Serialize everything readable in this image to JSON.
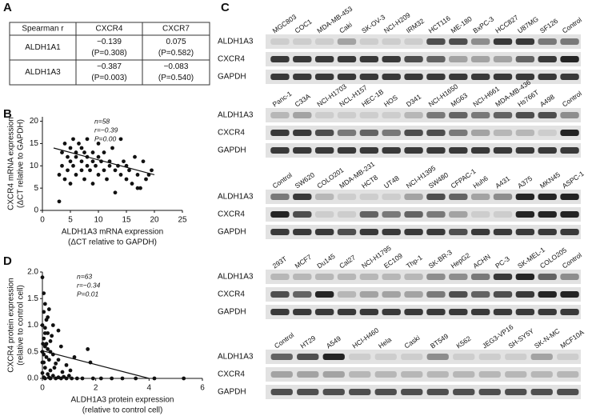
{
  "panel_letters": [
    "A",
    "B",
    "C",
    "D"
  ],
  "table": {
    "header": [
      "Spearman r",
      "CXCR4",
      "CXCR7"
    ],
    "rows": [
      [
        "ALDH1A1",
        [
          "−0.139",
          "(P=0.308)"
        ],
        [
          "0.075",
          "(P=0.582)"
        ]
      ],
      [
        "ALDH1A3",
        [
          "−0.387",
          "(P=0.003)"
        ],
        [
          "−0.083",
          "(P=0.540)"
        ]
      ]
    ]
  },
  "chart_data": [
    {
      "type": "scatter",
      "color": "#111",
      "ylabel": [
        "CXCR4 mRNA expression",
        "(ΔCT relative to GAPDH)"
      ],
      "xlabel": [
        "ALDH1A3 mRNA expression",
        "(ΔCT relative to GAPDH)"
      ],
      "annotations": [
        "n=58",
        "r=−0.39",
        "P=0.00"
      ],
      "xlim": [
        0,
        25
      ],
      "xticks": [
        0,
        5,
        10,
        15,
        20,
        25
      ],
      "ylim": [
        0,
        21
      ],
      "yticks": [
        0,
        5,
        10,
        15,
        20
      ],
      "x": [
        3,
        3,
        3.5,
        3.5,
        4,
        4,
        4.5,
        4.5,
        5,
        5,
        5,
        5.5,
        5.5,
        6,
        6,
        6,
        6.5,
        7,
        7,
        7,
        7.5,
        7.5,
        8,
        8,
        8,
        8.5,
        9,
        9,
        9,
        9.5,
        10,
        10,
        10,
        10.5,
        11,
        11,
        11.5,
        12,
        12,
        12.5,
        13,
        13,
        13.5,
        14,
        14,
        14.5,
        15,
        15,
        15.5,
        16,
        16.5,
        17,
        17,
        17.5,
        18,
        18.5,
        19,
        19.5
      ],
      "values": [
        2,
        8,
        10,
        13,
        7,
        15,
        12,
        9,
        11,
        14,
        6,
        16,
        10,
        13,
        8,
        12,
        15,
        11,
        9,
        14,
        13,
        7,
        10,
        12,
        16,
        9,
        11,
        13,
        6,
        10,
        12,
        8,
        15,
        11,
        9,
        13,
        7,
        10,
        11,
        14,
        9,
        4,
        10,
        16,
        8,
        11,
        7,
        10,
        9,
        6,
        12,
        5,
        8,
        5,
        11,
        7,
        8,
        9
      ],
      "fit": {
        "x": [
          2,
          20
        ],
        "values": [
          14,
          8
        ]
      }
    },
    {
      "type": "scatter",
      "color": "#111",
      "ylabel": [
        "CXCR4 protein expression",
        "(relative to control cell)"
      ],
      "xlabel": [
        "ALDH1A3 protein expression",
        "(relative to control cell)"
      ],
      "annotations": [
        "n=63",
        "r=−0.34",
        "P=0.01"
      ],
      "xlim": [
        0,
        6
      ],
      "xticks": [
        0,
        2,
        4,
        6
      ],
      "ylim": [
        0,
        2
      ],
      "yticks": [
        {
          "value": 0,
          "label": "0.0"
        },
        {
          "value": 0.5,
          "label": "0.5"
        },
        {
          "value": 1,
          "label": "1.0"
        },
        {
          "value": 1.5,
          "label": "1.5"
        },
        {
          "value": 2,
          "label": "2.0"
        }
      ],
      "x": [
        0,
        0.05,
        0.1,
        0.05,
        0.15,
        0,
        0.1,
        0.2,
        0.05,
        0.3,
        0.1,
        0.2,
        0,
        0.4,
        0.15,
        0.25,
        0.05,
        0.5,
        0.1,
        0.3,
        0,
        0.2,
        0.4,
        0.05,
        0.6,
        0.8,
        1.0,
        0.1,
        0.3,
        0.5,
        0.7,
        0.9,
        1.1,
        1.3,
        1.5,
        1.9,
        2.2,
        2.6,
        3.0,
        3.5,
        4.2,
        5.3,
        1.2,
        1.7,
        1.8,
        0.9,
        0.7,
        0.6,
        0.4,
        0.25,
        0.35,
        0.15,
        0.45,
        0.05,
        0.2,
        0.1,
        0,
        0.3,
        0.6,
        1.05,
        0.25,
        0.75,
        0.02
      ],
      "values": [
        1.9,
        1.6,
        1.4,
        1.25,
        1.1,
        1.0,
        0.95,
        0.85,
        0.75,
        0.7,
        0.6,
        0.55,
        0.5,
        0.45,
        0.4,
        0.35,
        0.3,
        0.28,
        0.2,
        0.15,
        0.1,
        0.08,
        0.05,
        0.02,
        0.02,
        0.03,
        0.05,
        0,
        0,
        0,
        0,
        0,
        0,
        0,
        0,
        0,
        0,
        0,
        0,
        0,
        0,
        0,
        0.4,
        0.55,
        0.3,
        0.25,
        0.6,
        0.9,
        1.0,
        1.3,
        0.8,
        0.65,
        0.2,
        0.45,
        1.15,
        0.85,
        0.3,
        0.5,
        0.35,
        0.15,
        0.02,
        0.12,
        0.65
      ],
      "fit": {
        "x": [
          0,
          4
        ],
        "values": [
          0.52,
          0
        ]
      }
    }
  ],
  "blots": [
    {
      "samples": [
        "MGC803",
        "COC1",
        "MDA-MB-453",
        "Caki",
        "SK-OV-3",
        "NCI-H209",
        "IRM32",
        "HCT116",
        "ME-180",
        "BxPC-3",
        "HCC827",
        "U87MG",
        "SF126",
        "Control"
      ],
      "rows": [
        {
          "label": "ALDH1A3",
          "intensity": [
            0.1,
            0.1,
            0.1,
            0.3,
            0.1,
            0.1,
            0.1,
            0.7,
            0.7,
            0.4,
            0.8,
            0.8,
            0.5,
            0.5
          ]
        },
        {
          "label": "CXCR4",
          "intensity": [
            0.8,
            0.8,
            0.8,
            0.8,
            0.8,
            0.8,
            0.7,
            0.6,
            0.3,
            0.3,
            0.3,
            0.6,
            0.8,
            0.9
          ]
        },
        {
          "label": "GAPDH",
          "intensity": [
            0.8,
            0.8,
            0.8,
            0.8,
            0.8,
            0.8,
            0.8,
            0.8,
            0.8,
            0.8,
            0.8,
            0.8,
            0.8,
            0.8
          ]
        }
      ]
    },
    {
      "samples": [
        "Panc-1",
        "C33A",
        "NCI-H1703",
        "NCL-H157",
        "HEC-1B",
        "HOS",
        "D341",
        "NCI-H1650",
        "MG63",
        "NCI-H661",
        "MDA-MB-436",
        "Hs766T",
        "A498",
        "Control"
      ],
      "rows": [
        {
          "label": "ALDH1A3",
          "intensity": [
            0.2,
            0.3,
            0.1,
            0.1,
            0.1,
            0.1,
            0.2,
            0.5,
            0.6,
            0.5,
            0.6,
            0.7,
            0.7,
            0.4
          ]
        },
        {
          "label": "CXCR4",
          "intensity": [
            0.8,
            0.8,
            0.7,
            0.5,
            0.6,
            0.5,
            0.7,
            0.7,
            0.5,
            0.3,
            0.2,
            0.2,
            0.1,
            0.9
          ]
        },
        {
          "label": "GAPDH",
          "intensity": [
            0.8,
            0.8,
            0.8,
            0.8,
            0.8,
            0.8,
            0.8,
            0.8,
            0.8,
            0.8,
            0.8,
            0.8,
            0.8,
            0.8
          ]
        }
      ]
    },
    {
      "samples": [
        "Control",
        "SW620",
        "COLO201",
        "MDA-MB-231",
        "HCT8",
        "UT48",
        "NCI-H1395",
        "SW480",
        "CFPAC-1",
        "Huh6",
        "A431",
        "A375",
        "MKN45",
        "ASPC-1"
      ],
      "rows": [
        {
          "label": "ALDH1A3",
          "intensity": [
            0.5,
            0.8,
            0.2,
            0.1,
            0.1,
            0.1,
            0.3,
            0.7,
            0.6,
            0.3,
            0.4,
            0.9,
            0.9,
            0.9
          ]
        },
        {
          "label": "CXCR4",
          "intensity": [
            0.9,
            0.7,
            0.1,
            0.1,
            0.6,
            0.5,
            0.6,
            0.5,
            0.3,
            0.1,
            0.1,
            0.9,
            0.9,
            0.9
          ]
        },
        {
          "label": "GAPDH",
          "intensity": [
            0.8,
            0.8,
            0.8,
            0.7,
            0.8,
            0.8,
            0.8,
            0.8,
            0.7,
            0.8,
            0.8,
            0.8,
            0.8,
            0.8
          ]
        }
      ]
    },
    {
      "samples": [
        "293T",
        "MCF7",
        "Du145",
        "Cal27",
        "NCI-H1795",
        "EC109",
        "Thp-1",
        "SK-BR-3",
        "HepG2",
        "ACHN",
        "PC-3",
        "SK-MEL-1",
        "COLO205",
        "Control"
      ],
      "rows": [
        {
          "label": "ALDH1A3",
          "intensity": [
            0.2,
            0.2,
            0.2,
            0.2,
            0.2,
            0.2,
            0.2,
            0.4,
            0.4,
            0.5,
            0.8,
            0.9,
            0.6,
            0.4
          ]
        },
        {
          "label": "CXCR4",
          "intensity": [
            0.7,
            0.6,
            0.9,
            0.2,
            0.3,
            0.3,
            0.3,
            0.5,
            0.7,
            0.6,
            0.7,
            0.8,
            0.9,
            0.9
          ]
        },
        {
          "label": "GAPDH",
          "intensity": [
            0.8,
            0.8,
            0.8,
            0.8,
            0.8,
            0.8,
            0.8,
            0.8,
            0.8,
            0.8,
            0.8,
            0.8,
            0.8,
            0.8
          ]
        }
      ]
    },
    {
      "samples": [
        "Control",
        "HT29",
        "A549",
        "HCI-H460",
        "Hela",
        "Caski",
        "BT549",
        "K562",
        "JEG3-VP16",
        "SH-SY5Y",
        "SK-N-MC",
        "MCF10A"
      ],
      "rows": [
        {
          "label": "ALDH1A3",
          "intensity": [
            0.6,
            0.7,
            0.9,
            0.1,
            0.1,
            0.1,
            0.4,
            0.1,
            0.1,
            0.1,
            0.3,
            0.1
          ]
        },
        {
          "label": "CXCR4",
          "intensity": [
            0.3,
            0.3,
            0.3,
            0.2,
            0.2,
            0.2,
            0.2,
            0.2,
            0.2,
            0.2,
            0.2,
            0.2
          ]
        },
        {
          "label": "GAPDH",
          "intensity": [
            0.7,
            0.7,
            0.7,
            0.7,
            0.7,
            0.7,
            0.7,
            0.7,
            0.7,
            0.7,
            0.7,
            0.7
          ]
        }
      ]
    }
  ]
}
